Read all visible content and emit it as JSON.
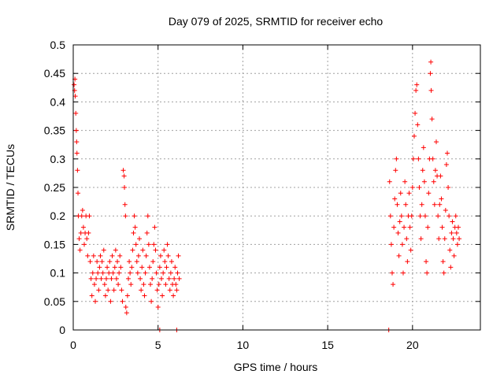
{
  "chart_data": {
    "type": "scatter",
    "title": "Day 079 of 2025, SRMTID for receiver echo",
    "xlabel": "GPS time / hours",
    "ylabel": "SRMTID / TECUs",
    "xlim": [
      0,
      24
    ],
    "ylim": [
      0,
      0.5
    ],
    "grid": true,
    "x_ticks": [
      0,
      5,
      10,
      15,
      20
    ],
    "y_ticks": [
      0,
      0.05,
      0.1,
      0.15,
      0.2,
      0.25,
      0.3,
      0.35,
      0.4,
      0.45,
      0.5
    ],
    "marker": "plus",
    "color": "#ff0000",
    "series": [
      {
        "name": "SRMTID",
        "points": [
          [
            0.05,
            0.43
          ],
          [
            0.08,
            0.42
          ],
          [
            0.1,
            0.44
          ],
          [
            0.12,
            0.41
          ],
          [
            0.15,
            0.38
          ],
          [
            0.18,
            0.35
          ],
          [
            0.2,
            0.33
          ],
          [
            0.22,
            0.31
          ],
          [
            0.25,
            0.28
          ],
          [
            0.28,
            0.24
          ],
          [
            0.3,
            0.2
          ],
          [
            0.35,
            0.16
          ],
          [
            0.4,
            0.14
          ],
          [
            0.45,
            0.17
          ],
          [
            0.5,
            0.2
          ],
          [
            0.55,
            0.21
          ],
          [
            0.6,
            0.18
          ],
          [
            0.65,
            0.15
          ],
          [
            0.7,
            0.17
          ],
          [
            0.75,
            0.2
          ],
          [
            0.8,
            0.16
          ],
          [
            0.85,
            0.13
          ],
          [
            0.9,
            0.17
          ],
          [
            0.95,
            0.2
          ],
          [
            1.0,
            0.12
          ],
          [
            1.05,
            0.09
          ],
          [
            1.1,
            0.06
          ],
          [
            1.15,
            0.1
          ],
          [
            1.2,
            0.13
          ],
          [
            1.25,
            0.08
          ],
          [
            1.3,
            0.05
          ],
          [
            1.35,
            0.09
          ],
          [
            1.4,
            0.12
          ],
          [
            1.45,
            0.1
          ],
          [
            1.5,
            0.07
          ],
          [
            1.55,
            0.11
          ],
          [
            1.6,
            0.13
          ],
          [
            1.65,
            0.09
          ],
          [
            1.7,
            0.12
          ],
          [
            1.75,
            0.1
          ],
          [
            1.8,
            0.14
          ],
          [
            1.85,
            0.08
          ],
          [
            1.9,
            0.06
          ],
          [
            1.95,
            0.09
          ],
          [
            2.0,
            0.11
          ],
          [
            2.05,
            0.07
          ],
          [
            2.1,
            0.1
          ],
          [
            2.15,
            0.12
          ],
          [
            2.2,
            0.05
          ],
          [
            2.25,
            0.09
          ],
          [
            2.3,
            0.13
          ],
          [
            2.35,
            0.1
          ],
          [
            2.4,
            0.07
          ],
          [
            2.45,
            0.11
          ],
          [
            2.5,
            0.14
          ],
          [
            2.55,
            0.09
          ],
          [
            2.6,
            0.12
          ],
          [
            2.65,
            0.08
          ],
          [
            2.7,
            0.1
          ],
          [
            2.75,
            0.13
          ],
          [
            2.8,
            0.11
          ],
          [
            2.85,
            0.07
          ],
          [
            2.9,
            0.05
          ],
          [
            2.95,
            0.28
          ],
          [
            3.0,
            0.27
          ],
          [
            3.02,
            0.25
          ],
          [
            3.05,
            0.22
          ],
          [
            3.08,
            0.2
          ],
          [
            3.1,
            0.04
          ],
          [
            3.15,
            0.03
          ],
          [
            3.2,
            0.06
          ],
          [
            3.25,
            0.09
          ],
          [
            3.3,
            0.12
          ],
          [
            3.35,
            0.1
          ],
          [
            3.4,
            0.08
          ],
          [
            3.45,
            0.11
          ],
          [
            3.5,
            0.14
          ],
          [
            3.55,
            0.17
          ],
          [
            3.6,
            0.2
          ],
          [
            3.65,
            0.18
          ],
          [
            3.7,
            0.15
          ],
          [
            3.75,
            0.12
          ],
          [
            3.8,
            0.1
          ],
          [
            3.85,
            0.13
          ],
          [
            3.9,
            0.16
          ],
          [
            3.95,
            0.09
          ],
          [
            4.0,
            0.07
          ],
          [
            4.05,
            0.11
          ],
          [
            4.1,
            0.14
          ],
          [
            4.15,
            0.08
          ],
          [
            4.2,
            0.06
          ],
          [
            4.25,
            0.1
          ],
          [
            4.3,
            0.13
          ],
          [
            4.35,
            0.17
          ],
          [
            4.4,
            0.2
          ],
          [
            4.45,
            0.15
          ],
          [
            4.5,
            0.11
          ],
          [
            4.55,
            0.08
          ],
          [
            4.6,
            0.05
          ],
          [
            4.65,
            0.09
          ],
          [
            4.7,
            0.12
          ],
          [
            4.75,
            0.15
          ],
          [
            4.8,
            0.18
          ],
          [
            4.85,
            0.14
          ],
          [
            4.9,
            0.1
          ],
          [
            4.95,
            0.07
          ],
          [
            5.0,
            0.04
          ],
          [
            5.05,
            0.08
          ],
          [
            5.1,
            0.11
          ],
          [
            5.15,
            0.13
          ],
          [
            5.2,
            0.09
          ],
          [
            5.25,
            0.06
          ],
          [
            5.3,
            0.1
          ],
          [
            5.35,
            0.14
          ],
          [
            5.4,
            0.12
          ],
          [
            5.45,
            0.08
          ],
          [
            5.5,
            0.11
          ],
          [
            5.55,
            0.15
          ],
          [
            5.6,
            0.13
          ],
          [
            5.65,
            0.09
          ],
          [
            5.7,
            0.07
          ],
          [
            5.75,
            0.1
          ],
          [
            5.8,
            0.12
          ],
          [
            5.85,
            0.08
          ],
          [
            5.9,
            0.06
          ],
          [
            5.95,
            0.09
          ],
          [
            6.0,
            0.11
          ],
          [
            6.05,
            0.08
          ],
          [
            6.1,
            0.07
          ],
          [
            6.15,
            0.1
          ],
          [
            6.2,
            0.13
          ],
          [
            6.25,
            0.09
          ],
          [
            5.1,
            0.0
          ],
          [
            6.1,
            0.0
          ],
          [
            18.6,
            0.0
          ],
          [
            18.65,
            0.26
          ],
          [
            18.7,
            0.2
          ],
          [
            18.75,
            0.15
          ],
          [
            18.8,
            0.1
          ],
          [
            18.85,
            0.08
          ],
          [
            18.9,
            0.18
          ],
          [
            18.95,
            0.23
          ],
          [
            19.0,
            0.28
          ],
          [
            19.05,
            0.3
          ],
          [
            19.1,
            0.22
          ],
          [
            19.15,
            0.17
          ],
          [
            19.2,
            0.13
          ],
          [
            19.25,
            0.19
          ],
          [
            19.3,
            0.24
          ],
          [
            19.35,
            0.2
          ],
          [
            19.4,
            0.15
          ],
          [
            19.45,
            0.1
          ],
          [
            19.5,
            0.18
          ],
          [
            19.55,
            0.26
          ],
          [
            19.6,
            0.22
          ],
          [
            19.65,
            0.16
          ],
          [
            19.7,
            0.12
          ],
          [
            19.75,
            0.2
          ],
          [
            19.8,
            0.24
          ],
          [
            19.85,
            0.18
          ],
          [
            19.9,
            0.14
          ],
          [
            19.95,
            0.2
          ],
          [
            20.0,
            0.25
          ],
          [
            20.05,
            0.3
          ],
          [
            20.1,
            0.34
          ],
          [
            20.15,
            0.38
          ],
          [
            20.2,
            0.42
          ],
          [
            20.25,
            0.43
          ],
          [
            20.3,
            0.36
          ],
          [
            20.35,
            0.3
          ],
          [
            20.4,
            0.25
          ],
          [
            20.45,
            0.2
          ],
          [
            20.5,
            0.16
          ],
          [
            20.55,
            0.22
          ],
          [
            20.6,
            0.28
          ],
          [
            20.65,
            0.32
          ],
          [
            20.7,
            0.26
          ],
          [
            20.75,
            0.2
          ],
          [
            20.8,
            0.12
          ],
          [
            20.85,
            0.1
          ],
          [
            20.9,
            0.18
          ],
          [
            20.95,
            0.24
          ],
          [
            21.0,
            0.3
          ],
          [
            21.05,
            0.45
          ],
          [
            21.08,
            0.47
          ],
          [
            21.1,
            0.42
          ],
          [
            21.15,
            0.37
          ],
          [
            21.2,
            0.3
          ],
          [
            21.25,
            0.26
          ],
          [
            21.3,
            0.22
          ],
          [
            21.35,
            0.28
          ],
          [
            21.4,
            0.33
          ],
          [
            21.45,
            0.27
          ],
          [
            21.5,
            0.2
          ],
          [
            21.55,
            0.16
          ],
          [
            21.6,
            0.22
          ],
          [
            21.65,
            0.27
          ],
          [
            21.7,
            0.23
          ],
          [
            21.75,
            0.18
          ],
          [
            21.8,
            0.12
          ],
          [
            21.85,
            0.1
          ],
          [
            21.9,
            0.16
          ],
          [
            21.95,
            0.21
          ],
          [
            22.0,
            0.29
          ],
          [
            22.05,
            0.31
          ],
          [
            22.1,
            0.25
          ],
          [
            22.15,
            0.2
          ],
          [
            22.2,
            0.14
          ],
          [
            22.25,
            0.11
          ],
          [
            22.3,
            0.17
          ],
          [
            22.35,
            0.19
          ],
          [
            22.4,
            0.16
          ],
          [
            22.45,
            0.13
          ],
          [
            22.5,
            0.18
          ],
          [
            22.55,
            0.2
          ],
          [
            22.6,
            0.17
          ],
          [
            22.65,
            0.15
          ],
          [
            22.7,
            0.18
          ],
          [
            22.75,
            0.16
          ]
        ]
      }
    ]
  }
}
